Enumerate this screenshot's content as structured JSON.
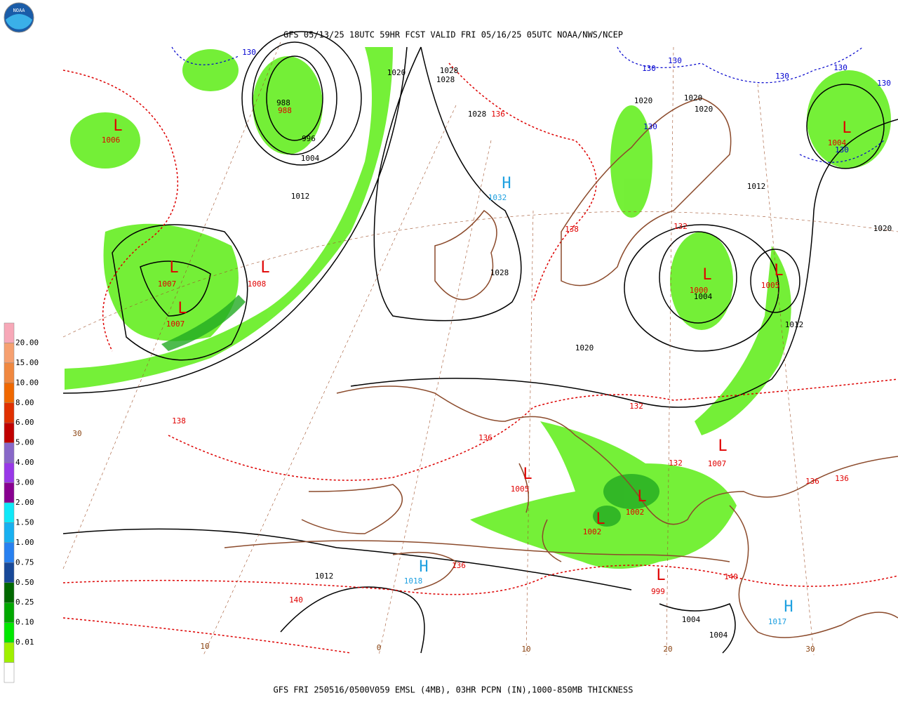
{
  "header": {
    "logo": "NOAA",
    "title": "GFS 05/13/25 18UTC 59HR FCST VALID FRI 05/16/25 05UTC NOAA/NWS/NCEP"
  },
  "footer": {
    "caption": "GFS FRI 250516/0500V059 EMSL (4MB), 03HR PCPN (IN),1000-850MB THICKNESS"
  },
  "legend": {
    "labels": [
      "20.00",
      "15.00",
      "10.00",
      "8.00",
      "6.00",
      "5.00",
      "4.00",
      "3.00",
      "2.00",
      "1.50",
      "1.00",
      "0.75",
      "0.50",
      "0.25",
      "0.10",
      "0.01"
    ],
    "colors": [
      "#f7a8b8",
      "#f6a070",
      "#f08840",
      "#f06800",
      "#e03000",
      "#c00000",
      "#8868c8",
      "#9838e8",
      "#880090",
      "#10e8f8",
      "#18b0f0",
      "#2880f0",
      "#184898",
      "#006800",
      "#00a800",
      "#00e800",
      "#a0f000",
      "#ffffff"
    ]
  },
  "map": {
    "labels": [
      {
        "text": "130",
        "color": "#0000d0"
      },
      {
        "text": "L",
        "color": "#e00000"
      },
      {
        "text": "1006",
        "color": "#e00000"
      },
      {
        "text": "988",
        "color": "#000000"
      },
      {
        "text": "988",
        "color": "#e00000"
      },
      {
        "text": "996",
        "color": "#000000"
      },
      {
        "text": "1004",
        "color": "#000000"
      },
      {
        "text": "1020",
        "color": "#000000"
      },
      {
        "text": "1028",
        "color": "#000000"
      },
      {
        "text": "1028",
        "color": "#000000"
      },
      {
        "text": "1028",
        "color": "#000000"
      },
      {
        "text": "136",
        "color": "#e00000"
      },
      {
        "text": "H",
        "color": "#1ea0e0"
      },
      {
        "text": "1032",
        "color": "#1ea0e0"
      },
      {
        "text": "1012",
        "color": "#000000"
      },
      {
        "text": "L",
        "color": "#e00000"
      },
      {
        "text": "1007",
        "color": "#e00000"
      },
      {
        "text": "L",
        "color": "#e00000"
      },
      {
        "text": "1008",
        "color": "#e00000"
      },
      {
        "text": "L",
        "color": "#e00000"
      },
      {
        "text": "1007",
        "color": "#e00000"
      },
      {
        "text": "1028",
        "color": "#000000"
      },
      {
        "text": "1020",
        "color": "#000000"
      },
      {
        "text": "130",
        "color": "#0000d0"
      },
      {
        "text": "130",
        "color": "#0000d0"
      },
      {
        "text": "1020",
        "color": "#000000"
      },
      {
        "text": "1020",
        "color": "#000000"
      },
      {
        "text": "1020",
        "color": "#000000"
      },
      {
        "text": "130",
        "color": "#0000d0"
      },
      {
        "text": "130",
        "color": "#0000d0"
      },
      {
        "text": "130",
        "color": "#0000d0"
      },
      {
        "text": "130",
        "color": "#0000d0"
      },
      {
        "text": "L",
        "color": "#e00000"
      },
      {
        "text": "1004",
        "color": "#e00000"
      },
      {
        "text": "130",
        "color": "#0000d0"
      },
      {
        "text": "1012",
        "color": "#000000"
      },
      {
        "text": "1020",
        "color": "#000000"
      },
      {
        "text": "132",
        "color": "#e00000"
      },
      {
        "text": "138",
        "color": "#e00000"
      },
      {
        "text": "L",
        "color": "#e00000"
      },
      {
        "text": "1000",
        "color": "#e00000"
      },
      {
        "text": "1004",
        "color": "#000000"
      },
      {
        "text": "L",
        "color": "#e00000"
      },
      {
        "text": "1005",
        "color": "#e00000"
      },
      {
        "text": "1012",
        "color": "#000000"
      },
      {
        "text": "138",
        "color": "#e00000"
      },
      {
        "text": "30",
        "color": "#8b4513"
      },
      {
        "text": "132",
        "color": "#e00000"
      },
      {
        "text": "136",
        "color": "#e00000"
      },
      {
        "text": "132",
        "color": "#e00000"
      },
      {
        "text": "L",
        "color": "#e00000"
      },
      {
        "text": "1007",
        "color": "#e00000"
      },
      {
        "text": "L",
        "color": "#e00000"
      },
      {
        "text": "1005",
        "color": "#e00000"
      },
      {
        "text": "136",
        "color": "#e00000"
      },
      {
        "text": "136",
        "color": "#e00000"
      },
      {
        "text": "L",
        "color": "#e00000"
      },
      {
        "text": "1002",
        "color": "#e00000"
      },
      {
        "text": "L",
        "color": "#e00000"
      },
      {
        "text": "1002",
        "color": "#e00000"
      },
      {
        "text": "H",
        "color": "#1ea0e0"
      },
      {
        "text": "1018",
        "color": "#1ea0e0"
      },
      {
        "text": "136",
        "color": "#e00000"
      },
      {
        "text": "1012",
        "color": "#000000"
      },
      {
        "text": "L",
        "color": "#e00000"
      },
      {
        "text": "999",
        "color": "#e00000"
      },
      {
        "text": "140",
        "color": "#e00000"
      },
      {
        "text": "140",
        "color": "#e00000"
      },
      {
        "text": "H",
        "color": "#1ea0e0"
      },
      {
        "text": "1017",
        "color": "#1ea0e0"
      },
      {
        "text": "1004",
        "color": "#000000"
      },
      {
        "text": "1004",
        "color": "#000000"
      },
      {
        "text": "10",
        "color": "#8b4513"
      },
      {
        "text": "0",
        "color": "#8b4513"
      },
      {
        "text": "10",
        "color": "#8b4513"
      },
      {
        "text": "20",
        "color": "#8b4513"
      },
      {
        "text": "30",
        "color": "#8b4513"
      }
    ]
  }
}
